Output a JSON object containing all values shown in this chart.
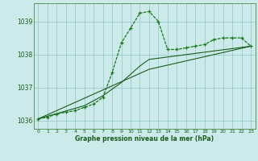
{
  "title": "Graphe pression niveau de la mer (hPa)",
  "background_color": "#cceaea",
  "plot_background": "#cceaea",
  "grid_color": "#99cccc",
  "line_color_dark": "#1a5c1a",
  "line_color_main": "#1a7a1a",
  "xlim": [
    -0.5,
    23.5
  ],
  "ylim": [
    1035.75,
    1039.55
  ],
  "yticks": [
    1036,
    1037,
    1038,
    1039
  ],
  "xticks": [
    0,
    1,
    2,
    3,
    4,
    5,
    6,
    7,
    8,
    9,
    10,
    11,
    12,
    13,
    14,
    15,
    16,
    17,
    18,
    19,
    20,
    21,
    22,
    23
  ],
  "main_x": [
    0,
    1,
    2,
    3,
    4,
    5,
    6,
    7,
    8,
    9,
    10,
    11,
    12,
    13,
    14,
    15,
    16,
    17,
    18,
    19,
    20,
    21,
    22,
    23
  ],
  "main_y": [
    1036.05,
    1036.1,
    1036.2,
    1036.25,
    1036.3,
    1036.4,
    1036.5,
    1036.7,
    1037.45,
    1038.35,
    1038.8,
    1039.25,
    1039.3,
    1039.0,
    1038.15,
    1038.15,
    1038.2,
    1038.25,
    1038.3,
    1038.45,
    1038.5,
    1038.5,
    1038.5,
    1038.25
  ],
  "line2_x": [
    0,
    5,
    6,
    7,
    8,
    9,
    10,
    11,
    12,
    23
  ],
  "line2_y": [
    1036.05,
    1036.45,
    1036.6,
    1036.75,
    1036.95,
    1037.15,
    1037.4,
    1037.65,
    1037.85,
    1038.25
  ],
  "line3_x": [
    0,
    12,
    23
  ],
  "line3_y": [
    1036.05,
    1037.55,
    1038.25
  ]
}
